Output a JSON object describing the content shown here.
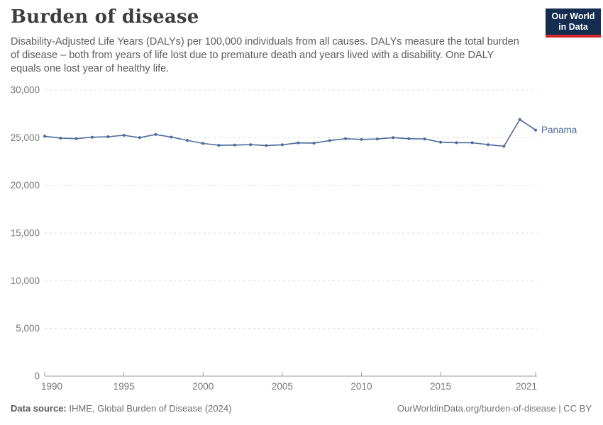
{
  "header": {
    "title": "Burden of disease",
    "subtitle": "Disability-Adjusted Life Years (DALYs) per 100,000 individuals from all causes. DALYs measure the total burden of disease – both from years of life lost due to premature death and years lived with a disability. One DALY equals one lost year of healthy life.",
    "logo": {
      "line1": "Our World",
      "line2": "in Data",
      "bg_color": "#152d4f",
      "accent_color": "#d2262c"
    }
  },
  "chart_data": {
    "type": "line",
    "title": "Burden of disease",
    "xlabel": "",
    "ylabel": "",
    "ylim": [
      0,
      30000
    ],
    "yticks": [
      0,
      5000,
      10000,
      15000,
      20000,
      25000,
      30000
    ],
    "xticks": [
      1990,
      1995,
      2000,
      2005,
      2010,
      2015,
      2021
    ],
    "xlim": [
      1990,
      2021
    ],
    "grid": "horizontal-dashed",
    "legend_position": "end-of-line-label",
    "series": [
      {
        "name": "Panama",
        "color": "#4C6A9C",
        "x": [
          1990,
          1991,
          1992,
          1993,
          1994,
          1995,
          1996,
          1997,
          1998,
          1999,
          2000,
          2001,
          2002,
          2003,
          2004,
          2005,
          2006,
          2007,
          2008,
          2009,
          2010,
          2011,
          2012,
          2013,
          2014,
          2015,
          2016,
          2017,
          2018,
          2019,
          2020,
          2021
        ],
        "values": [
          25150,
          24950,
          24900,
          25050,
          25100,
          25250,
          25000,
          25330,
          25060,
          24720,
          24390,
          24200,
          24220,
          24270,
          24170,
          24250,
          24450,
          24420,
          24700,
          24890,
          24820,
          24860,
          25000,
          24890,
          24860,
          24520,
          24470,
          24470,
          24270,
          24100,
          26900,
          25800
        ]
      }
    ]
  },
  "footer": {
    "source_label": "Data source:",
    "source_value": " IHME, Global Burden of Disease (2024)",
    "link": "OurWorldinData.org/burden-of-disease | CC BY"
  },
  "colors": {
    "gridline": "#d9d9d9",
    "axis": "#9b9b9b",
    "tick_label": "#787878"
  }
}
